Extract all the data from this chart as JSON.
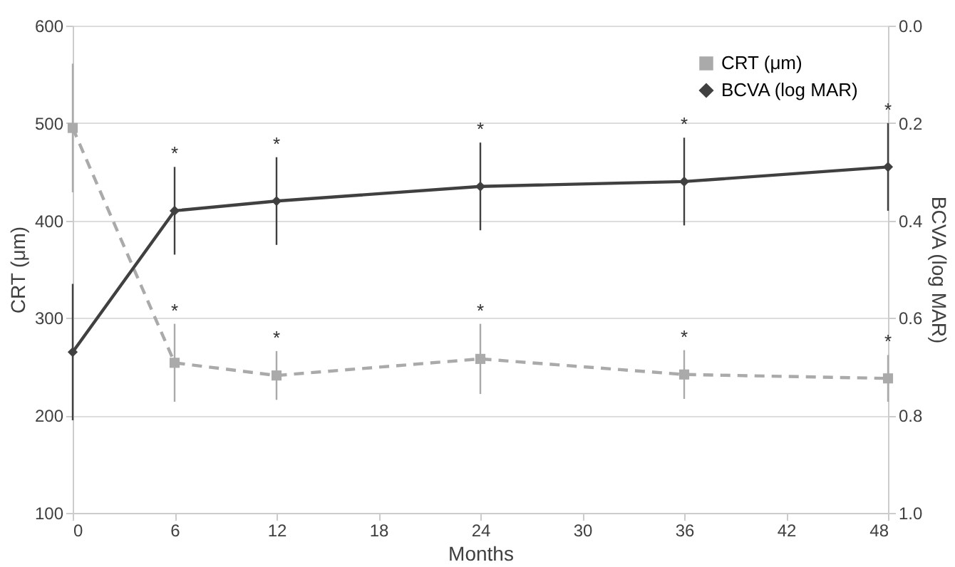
{
  "chart_data": {
    "type": "line",
    "xlabel": "Months",
    "ylabel": "CRT (μm)",
    "y2label": "BCVA (log MAR)",
    "x": [
      0,
      6,
      12,
      24,
      36,
      48
    ],
    "series": [
      {
        "name": "CRT (μm)",
        "color": "#aaaaaa",
        "marker": "square",
        "line_style": "dashed",
        "values": [
          495,
          254,
          241,
          258,
          242,
          238
        ],
        "errors": [
          66,
          40,
          25,
          36,
          25,
          24
        ]
      },
      {
        "name": "BCVA (log MAR)",
        "color": "#404040",
        "marker": "diamond",
        "line_style": "solid",
        "axis": "y2",
        "values": [
          0.67,
          0.38,
          0.36,
          0.33,
          0.32,
          0.29
        ],
        "errors": [
          0.14,
          0.09,
          0.09,
          0.09,
          0.09,
          0.09
        ]
      }
    ],
    "xlim": [
      0,
      48
    ],
    "xticks": [
      0,
      6,
      12,
      18,
      24,
      30,
      36,
      42,
      48
    ],
    "ylim": [
      100,
      600
    ],
    "yticks": [
      100,
      200,
      300,
      400,
      500,
      600
    ],
    "y2lim": [
      1.0,
      0.0
    ],
    "y2ticks": [
      {
        "value": 0,
        "label": "0.0"
      },
      {
        "value": 0.2,
        "label": "0.2"
      },
      {
        "value": 0.4,
        "label": "0.4"
      },
      {
        "value": 0.6,
        "label": "0.6"
      },
      {
        "value": 0.8,
        "label": "0.8"
      },
      {
        "value": 1.0,
        "label": "1.0"
      }
    ],
    "grid": "y",
    "legend": "top right",
    "annotations": [
      "*",
      "*",
      "*",
      "*",
      "*",
      "*",
      "*",
      "*",
      "*",
      "*"
    ]
  }
}
